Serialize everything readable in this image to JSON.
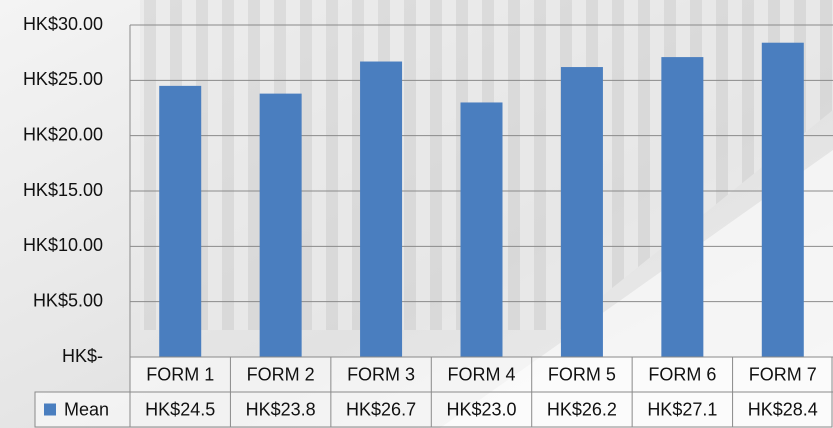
{
  "chart_data": {
    "type": "bar",
    "categories": [
      "FORM 1",
      "FORM 2",
      "FORM 3",
      "FORM 4",
      "FORM 5",
      "FORM 6",
      "FORM 7"
    ],
    "series": [
      {
        "name": "Mean",
        "color": "#4a7ebf",
        "values": [
          24.5,
          23.8,
          26.7,
          23.0,
          26.2,
          27.1,
          28.4
        ],
        "value_labels": [
          "HK$24.5",
          "HK$23.8",
          "HK$26.7",
          "HK$23.0",
          "HK$26.2",
          "HK$27.1",
          "HK$28.4"
        ]
      }
    ],
    "ylim": [
      0,
      30
    ],
    "yticks": [
      {
        "value": 0,
        "label": "HK$-"
      },
      {
        "value": 5,
        "label": "HK$5.00"
      },
      {
        "value": 10,
        "label": "HK$10.00"
      },
      {
        "value": 15,
        "label": "HK$15.00"
      },
      {
        "value": 20,
        "label": "HK$20.00"
      },
      {
        "value": 25,
        "label": "HK$25.00"
      },
      {
        "value": 30,
        "label": "HK$30.00"
      }
    ],
    "grid": true
  }
}
